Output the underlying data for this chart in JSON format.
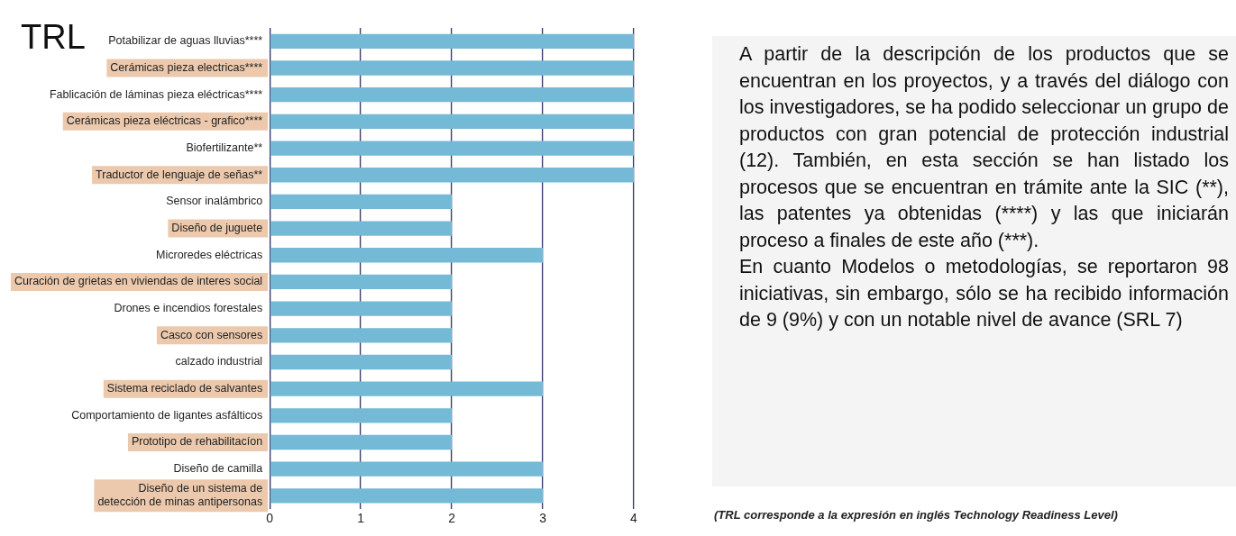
{
  "chart_data": {
    "type": "bar",
    "orientation": "horizontal",
    "title": "TRL",
    "categories": [
      "Potabilizar de aguas lluvias****",
      "Cerámicas pieza electricas****",
      "Fablicación de láminas pieza eléctricas****",
      "Cerámicas pieza eléctricas - grafico****",
      "Biofertilizante**",
      "Traductor de lenguaje de señas**",
      "Sensor inalámbrico",
      "Diseño de juguete",
      "Microredes eléctricas",
      "Curación de grietas en viviendas de interes social",
      "Drones e incendios forestales",
      "Casco con sensores",
      "calzado industrial",
      "Sistema reciclado de salvantes",
      "Comportamiento de ligantes asfálticos",
      "Prototipo de rehabilitacíon",
      "Diseño de camilla",
      "Diseño de un sistema de\ndetección de minas antipersonas"
    ],
    "values": [
      4,
      4,
      4,
      4,
      4,
      4,
      2,
      2,
      3,
      2,
      2,
      2,
      2,
      3,
      2,
      2,
      3,
      3
    ],
    "color": "#74b9d5",
    "xlim": [
      0,
      4
    ],
    "xticks": [
      0,
      1,
      2,
      3,
      4
    ],
    "grid": "x",
    "annotations": [
      "A partir de la descripción de los productos que se encuentran en los proyectos, y a través del diálogo con los investigadores, se ha podido seleccionar un grupo de productos con gran potencial de protección industrial (12). También, en esta sección se han listado los procesos que se encuentran en trámite ante la SIC (**), las patentes ya obtenidas (****) y las que iniciarán proceso a finales de este año (***).",
      "En cuanto Modelos o metodologías, se reportaron 98 iniciativas, sin embargo, sólo se ha recibido información de 9 (9%) y con un notable nivel de avance (SRL 7)",
      "(TRL corresponde a la expresión en inglés Technology Readiness Level)"
    ]
  }
}
